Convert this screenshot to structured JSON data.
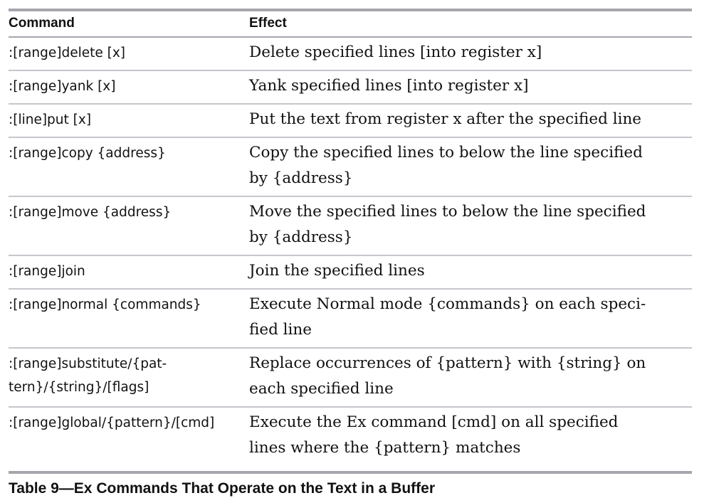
{
  "table": {
    "headers": [
      "Command",
      "Effect"
    ],
    "rows": [
      {
        "command": [
          ":[range]delete [x]"
        ],
        "effect": [
          "Delete specified lines [into register x]"
        ]
      },
      {
        "command": [
          ":[range]yank [x]"
        ],
        "effect": [
          "Yank specified lines [into register x]"
        ]
      },
      {
        "command": [
          ":[line]put [x]"
        ],
        "effect": [
          "Put the text from register x after the specified line"
        ]
      },
      {
        "command": [
          ":[range]copy {address}"
        ],
        "effect": [
          "Copy the specified lines to below the line specified",
          "by {address}"
        ]
      },
      {
        "command": [
          ":[range]move {address}"
        ],
        "effect": [
          "Move the specified lines to below the line specified",
          "by {address}"
        ]
      },
      {
        "command": [
          ":[range]join"
        ],
        "effect": [
          "Join the specified lines"
        ]
      },
      {
        "command": [
          ":[range]normal {commands}"
        ],
        "effect": [
          "Execute Normal mode {commands} on each speci-",
          "fied line"
        ]
      },
      {
        "command": [
          ":[range]substitute/{pat-",
          "tern}/{string}/[flags]"
        ],
        "effect": [
          "Replace occurrences of {pattern} with {string} on",
          "each specified line"
        ]
      },
      {
        "command": [
          ":[range]global/{pattern}/[cmd]"
        ],
        "effect": [
          "Execute the Ex command [cmd] on all specified",
          "lines where the {pattern} matches"
        ]
      }
    ]
  },
  "caption": "Table 9—Ex Commands That Operate on the Text in a Buffer"
}
